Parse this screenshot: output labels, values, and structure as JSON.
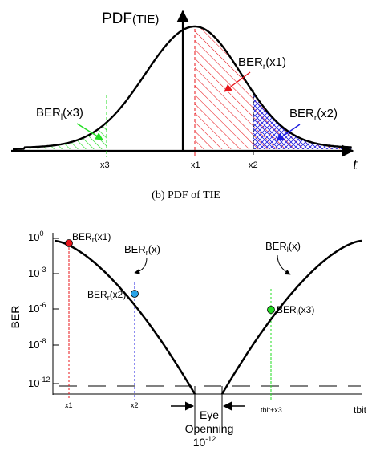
{
  "top_panel": {
    "y_title_main": "PDF",
    "y_title_paren": "(TIE)",
    "x_axis_label": "t",
    "labels": {
      "ber_r_x1": {
        "base": "BER",
        "sub": "r",
        "arg": "(x1)",
        "color": "#e8141a"
      },
      "ber_r_x2": {
        "base": "BER",
        "sub": "r",
        "arg": "(x2)",
        "color": "#1e1ee0"
      },
      "ber_l_x3": {
        "base": "BER",
        "sub": "l",
        "arg": "(x3)",
        "color": "#22dd22"
      }
    },
    "ticks": {
      "x3": "x3",
      "x1": "x1",
      "x2": "x2"
    },
    "caption": "(b) PDF of TIE"
  },
  "bottom_panel": {
    "y_axis_label": "BER",
    "y_ticks": [
      {
        "base": "10",
        "exp": "0"
      },
      {
        "base": "10",
        "exp": "-3"
      },
      {
        "base": "10",
        "exp": "-6"
      },
      {
        "base": "10",
        "exp": "-8"
      },
      {
        "base": "10",
        "exp": "-12"
      }
    ],
    "x_ticks": {
      "x1": "x1",
      "x2": "x2",
      "tbit_x3": "tbit+x3",
      "tbit": "tbit"
    },
    "curve_labels": {
      "right": {
        "base": "BER",
        "sub": "r",
        "arg": "(x)"
      },
      "left": {
        "base": "BER",
        "sub": "l",
        "arg": "(x)"
      }
    },
    "points": {
      "ber_r_x1": {
        "base": "BER",
        "sub": "r",
        "arg": "(x1)",
        "color": "#e8141a"
      },
      "ber_r_x2": {
        "base": "BER",
        "sub": "r",
        "arg": "(x2)",
        "color": "#1e1ee0"
      },
      "ber_l_x3": {
        "base": "BER",
        "sub": "l",
        "arg": "(x3)",
        "color": "#22dd22"
      }
    },
    "eye": {
      "line1": "Eye",
      "line2": "Openning",
      "line3_base": "10",
      "line3_exp": "-12"
    }
  }
}
